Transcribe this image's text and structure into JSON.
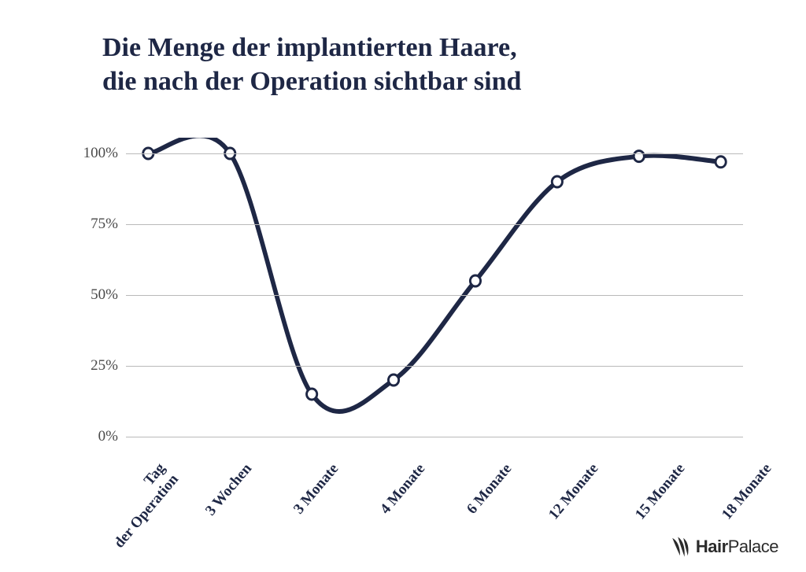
{
  "chart": {
    "type": "line",
    "title_line1": "Die Menge der implantierten Haare,",
    "title_line2": "die nach der Operation sichtbar sind",
    "title_fontsize": 34,
    "title_color": "#1e2745",
    "line_color": "#1e2745",
    "line_width": 6,
    "marker_radius": 7,
    "marker_stroke_width": 3,
    "marker_fill": "#ffffff",
    "grid_color": "#b9b9b9",
    "axis_label_color": "#4a4a4a",
    "axis_label_fontsize": 19,
    "xlabel_color": "#1e2745",
    "xlabel_fontsize": 19,
    "background_color": "#ffffff",
    "ylim": [
      0,
      100
    ],
    "ytick_step": 25,
    "yticks": [
      0,
      25,
      50,
      75,
      100
    ],
    "ytick_labels": [
      "0%",
      "25%",
      "50%",
      "75%",
      "100%"
    ],
    "x_categories": [
      "Tag\nder Operation",
      "3 Wochen",
      "3 Monate",
      "4 Monate",
      "6 Monate",
      "12 Monate",
      "15 Monate",
      "18 Monate"
    ],
    "values": [
      100,
      100,
      15,
      20,
      55,
      90,
      99,
      97
    ]
  },
  "logo": {
    "brand_part1": "Hair",
    "brand_part2": "Palace",
    "icon_color": "#2b2b2b"
  }
}
